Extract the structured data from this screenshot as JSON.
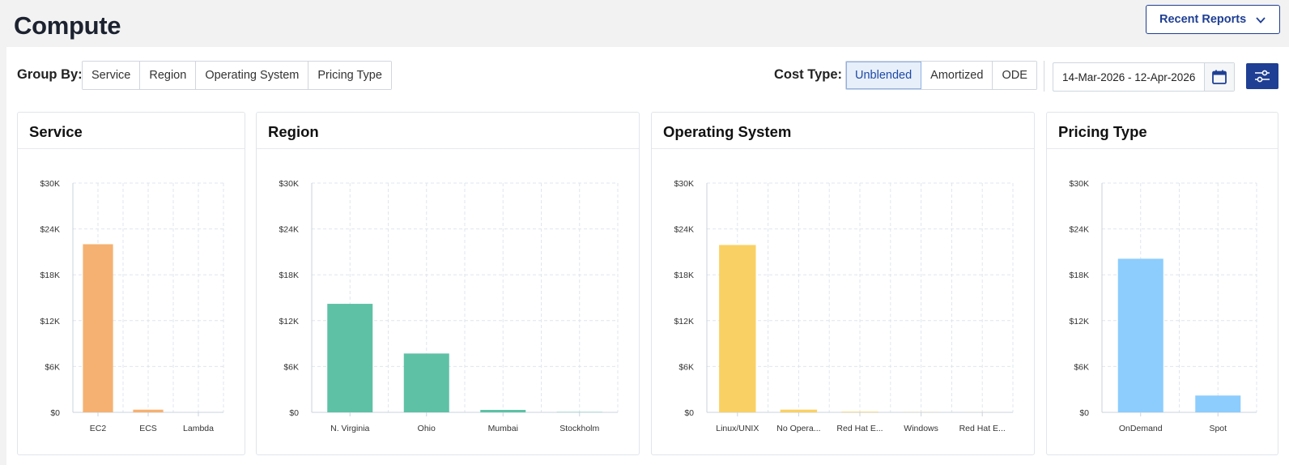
{
  "page": {
    "title": "Compute"
  },
  "header": {
    "recent_reports_label": "Recent Reports"
  },
  "toolbar": {
    "group_by_label": "Group By:",
    "group_by_options": [
      "Service",
      "Region",
      "Operating System",
      "Pricing Type"
    ],
    "cost_type_label": "Cost Type:",
    "cost_type_options": [
      "Unblended",
      "Amortized",
      "ODE"
    ],
    "cost_type_selected": "Unblended",
    "date_range": "14-Mar-2026 - 12-Apr-2026"
  },
  "colors": {
    "brand": "#1f3f94",
    "service": "#f5b171",
    "region": "#5ec1a5",
    "operating_system": "#f9d063",
    "pricing_type": "#8ccdfd"
  },
  "chart_data": [
    {
      "type": "bar",
      "title": "Service",
      "categories": [
        "EC2",
        "ECS",
        "Lambda"
      ],
      "values": [
        22000,
        350,
        0
      ],
      "yticks": [
        "$0",
        "$6K",
        "$12K",
        "$18K",
        "$24K",
        "$30K"
      ],
      "ylim": [
        0,
        30000
      ],
      "grid": true,
      "color": "#f5b171"
    },
    {
      "type": "bar",
      "title": "Region",
      "categories": [
        "N. Virginia",
        "Ohio",
        "Mumbai",
        "Stockholm"
      ],
      "values": [
        14200,
        7700,
        320,
        40
      ],
      "yticks": [
        "$0",
        "$6K",
        "$12K",
        "$18K",
        "$24K",
        "$30K"
      ],
      "ylim": [
        0,
        30000
      ],
      "grid": true,
      "color": "#5ec1a5"
    },
    {
      "type": "bar",
      "title": "Operating System",
      "categories": [
        "Linux/UNIX",
        "No Opera...",
        "Red Hat E...",
        "Windows",
        "Red Hat E..."
      ],
      "values": [
        21900,
        350,
        80,
        20,
        10
      ],
      "yticks": [
        "$0",
        "$6K",
        "$12K",
        "$18K",
        "$24K",
        "$30K"
      ],
      "ylim": [
        0,
        30000
      ],
      "grid": true,
      "color": "#f9d063"
    },
    {
      "type": "bar",
      "title": "Pricing Type",
      "categories": [
        "OnDemand",
        "Spot"
      ],
      "values": [
        20100,
        2200
      ],
      "yticks": [
        "$0",
        "$6K",
        "$12K",
        "$18K",
        "$24K",
        "$30K"
      ],
      "ylim": [
        0,
        30000
      ],
      "grid": true,
      "color": "#8ccdfd"
    }
  ]
}
